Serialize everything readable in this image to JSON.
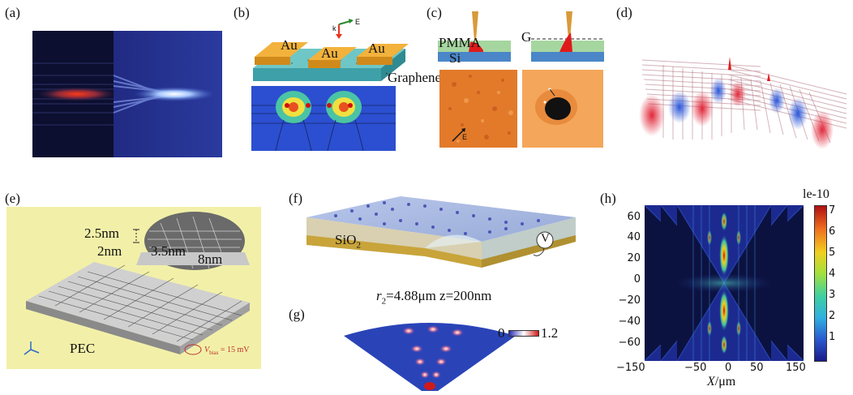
{
  "panels": {
    "a": {
      "label": "(a)"
    },
    "b": {
      "label": "(b)",
      "au": [
        "Au",
        "Au",
        "Au"
      ],
      "graphene": "Graphene",
      "k": "k",
      "e": "E"
    },
    "c": {
      "label": "(c)",
      "pmma": "PMMA",
      "si": "Si",
      "g": "G",
      "e": "E"
    },
    "d": {
      "label": "(d)"
    },
    "e": {
      "label": "(e)",
      "dim_25": "2.5nm",
      "dim_2": "2nm",
      "dim_35": "3.5nm",
      "dim_8": "8nm",
      "pec": "PEC",
      "vbias": "V",
      "vbias_sub": "bias",
      "vbias_val": " = 15 mV"
    },
    "f": {
      "label": "(f)",
      "sio2": "SiO",
      "sio2_sub": "2",
      "v": "V"
    },
    "g": {
      "label": "(g)",
      "r": "r",
      "r_sub": "2",
      "params": "=4.88μm  z=200nm",
      "cmin": "0",
      "cmax": "1.2"
    },
    "h": {
      "label": "(h)",
      "scale": "le-10",
      "xlabel_var": "X",
      "xlabel_unit": "/μm",
      "xticks": [
        "−150",
        "−50",
        "0",
        "50",
        "150"
      ],
      "yticks": [
        "60",
        "40",
        "20",
        "0",
        "−20",
        "−40",
        "−60"
      ],
      "cticks": [
        "7",
        "6",
        "5",
        "4",
        "3",
        "2",
        "1"
      ]
    }
  },
  "chart_data": {
    "type": "heatmap",
    "title": "",
    "xlabel": "X/μm",
    "ylabel": "",
    "xlim": [
      -150,
      150
    ],
    "ylim": [
      -75,
      75
    ],
    "colorbar_label": "le-10",
    "colorbar_range": [
      0,
      7.3
    ],
    "colorbar_ticks": [
      1,
      2,
      3,
      4,
      5,
      6,
      7
    ]
  }
}
